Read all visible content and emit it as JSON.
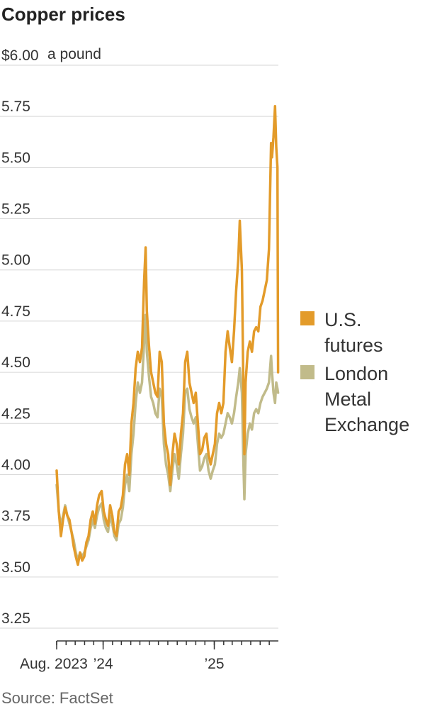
{
  "chart_data": {
    "type": "line",
    "title": "Copper prices",
    "unit_label": "a pound",
    "source": "Source: FactSet",
    "ylim": [
      3.25,
      6.0
    ],
    "y_ticks": [
      {
        "value": 6.0,
        "label": "$6.00"
      },
      {
        "value": 5.75,
        "label": "5.75"
      },
      {
        "value": 5.5,
        "label": "5.50"
      },
      {
        "value": 5.25,
        "label": "5.25"
      },
      {
        "value": 5.0,
        "label": "5.00"
      },
      {
        "value": 4.75,
        "label": "4.75"
      },
      {
        "value": 4.5,
        "label": "4.50"
      },
      {
        "value": 4.25,
        "label": "4.25"
      },
      {
        "value": 4.0,
        "label": "4.00"
      },
      {
        "value": 3.75,
        "label": "3.75"
      },
      {
        "value": 3.5,
        "label": "3.50"
      },
      {
        "value": 3.25,
        "label": "3.25"
      }
    ],
    "xlim": [
      "2023-08-01",
      "2025-07-31"
    ],
    "x_tick_labels": [
      {
        "date": "2023-08-01",
        "label": "Aug. 2023"
      },
      {
        "date": "2024-01-01",
        "label": "’24"
      },
      {
        "date": "2025-01-01",
        "label": "’25"
      }
    ],
    "x_month_ticks": [
      "2023-08-01",
      "2023-09-01",
      "2023-10-01",
      "2023-11-01",
      "2023-12-01",
      "2024-01-01",
      "2024-02-01",
      "2024-03-01",
      "2024-04-01",
      "2024-05-01",
      "2024-06-01",
      "2024-07-01",
      "2024-08-01",
      "2024-09-01",
      "2024-10-01",
      "2024-11-01",
      "2024-12-01",
      "2025-01-01",
      "2025-02-01",
      "2025-03-01",
      "2025-04-01",
      "2025-05-01",
      "2025-06-01",
      "2025-07-01"
    ],
    "legend_position": "right",
    "series": [
      {
        "name": "U.S. futures",
        "color": "#e39b2a",
        "points": [
          [
            "2023-08-01",
            4.02
          ],
          [
            "2023-08-08",
            3.82
          ],
          [
            "2023-08-15",
            3.7
          ],
          [
            "2023-08-22",
            3.78
          ],
          [
            "2023-08-29",
            3.84
          ],
          [
            "2023-09-05",
            3.8
          ],
          [
            "2023-09-12",
            3.78
          ],
          [
            "2023-09-19",
            3.72
          ],
          [
            "2023-09-26",
            3.65
          ],
          [
            "2023-10-03",
            3.6
          ],
          [
            "2023-10-10",
            3.56
          ],
          [
            "2023-10-17",
            3.62
          ],
          [
            "2023-10-24",
            3.58
          ],
          [
            "2023-10-31",
            3.6
          ],
          [
            "2023-11-07",
            3.67
          ],
          [
            "2023-11-14",
            3.7
          ],
          [
            "2023-11-21",
            3.78
          ],
          [
            "2023-11-28",
            3.82
          ],
          [
            "2023-12-05",
            3.76
          ],
          [
            "2023-12-12",
            3.85
          ],
          [
            "2023-12-19",
            3.9
          ],
          [
            "2023-12-27",
            3.92
          ],
          [
            "2024-01-03",
            3.82
          ],
          [
            "2024-01-10",
            3.78
          ],
          [
            "2024-01-17",
            3.75
          ],
          [
            "2024-01-24",
            3.85
          ],
          [
            "2024-01-31",
            3.8
          ],
          [
            "2024-02-07",
            3.72
          ],
          [
            "2024-02-14",
            3.7
          ],
          [
            "2024-02-21",
            3.82
          ],
          [
            "2024-02-28",
            3.84
          ],
          [
            "2024-03-06",
            3.9
          ],
          [
            "2024-03-13",
            4.05
          ],
          [
            "2024-03-20",
            4.1
          ],
          [
            "2024-03-27",
            4.0
          ],
          [
            "2024-04-03",
            4.25
          ],
          [
            "2024-04-10",
            4.35
          ],
          [
            "2024-04-17",
            4.52
          ],
          [
            "2024-04-24",
            4.6
          ],
          [
            "2024-05-01",
            4.55
          ],
          [
            "2024-05-08",
            4.62
          ],
          [
            "2024-05-15",
            4.95
          ],
          [
            "2024-05-20",
            5.11
          ],
          [
            "2024-05-24",
            4.8
          ],
          [
            "2024-05-31",
            4.63
          ],
          [
            "2024-06-07",
            4.5
          ],
          [
            "2024-06-14",
            4.45
          ],
          [
            "2024-06-21",
            4.4
          ],
          [
            "2024-06-28",
            4.38
          ],
          [
            "2024-07-05",
            4.6
          ],
          [
            "2024-07-12",
            4.55
          ],
          [
            "2024-07-19",
            4.25
          ],
          [
            "2024-07-26",
            4.15
          ],
          [
            "2024-08-02",
            4.1
          ],
          [
            "2024-08-09",
            3.95
          ],
          [
            "2024-08-16",
            4.1
          ],
          [
            "2024-08-23",
            4.2
          ],
          [
            "2024-08-30",
            4.15
          ],
          [
            "2024-09-06",
            4.05
          ],
          [
            "2024-09-13",
            4.2
          ],
          [
            "2024-09-20",
            4.3
          ],
          [
            "2024-09-27",
            4.55
          ],
          [
            "2024-10-04",
            4.6
          ],
          [
            "2024-10-11",
            4.45
          ],
          [
            "2024-10-18",
            4.4
          ],
          [
            "2024-10-25",
            4.35
          ],
          [
            "2024-11-01",
            4.4
          ],
          [
            "2024-11-08",
            4.25
          ],
          [
            "2024-11-15",
            4.1
          ],
          [
            "2024-11-22",
            4.12
          ],
          [
            "2024-11-29",
            4.18
          ],
          [
            "2024-12-06",
            4.2
          ],
          [
            "2024-12-13",
            4.1
          ],
          [
            "2024-12-20",
            4.05
          ],
          [
            "2024-12-27",
            4.1
          ],
          [
            "2025-01-03",
            4.15
          ],
          [
            "2025-01-10",
            4.3
          ],
          [
            "2025-01-17",
            4.35
          ],
          [
            "2025-01-24",
            4.3
          ],
          [
            "2025-01-31",
            4.35
          ],
          [
            "2025-02-07",
            4.6
          ],
          [
            "2025-02-14",
            4.7
          ],
          [
            "2025-02-21",
            4.62
          ],
          [
            "2025-02-28",
            4.55
          ],
          [
            "2025-03-07",
            4.7
          ],
          [
            "2025-03-14",
            4.9
          ],
          [
            "2025-03-21",
            5.05
          ],
          [
            "2025-03-26",
            5.24
          ],
          [
            "2025-04-02",
            5.0
          ],
          [
            "2025-04-07",
            4.4
          ],
          [
            "2025-04-10",
            4.1
          ],
          [
            "2025-04-14",
            4.45
          ],
          [
            "2025-04-21",
            4.6
          ],
          [
            "2025-04-28",
            4.65
          ],
          [
            "2025-05-05",
            4.6
          ],
          [
            "2025-05-12",
            4.7
          ],
          [
            "2025-05-19",
            4.72
          ],
          [
            "2025-05-26",
            4.7
          ],
          [
            "2025-06-02",
            4.82
          ],
          [
            "2025-06-09",
            4.85
          ],
          [
            "2025-06-16",
            4.9
          ],
          [
            "2025-06-23",
            4.95
          ],
          [
            "2025-06-30",
            5.1
          ],
          [
            "2025-07-07",
            5.62
          ],
          [
            "2025-07-10",
            5.55
          ],
          [
            "2025-07-15",
            5.65
          ],
          [
            "2025-07-20",
            5.8
          ],
          [
            "2025-07-24",
            5.6
          ],
          [
            "2025-07-28",
            5.5
          ],
          [
            "2025-07-30",
            4.5
          ]
        ]
      },
      {
        "name": "London Metal Exchange",
        "color": "#c1bb8a",
        "points": [
          [
            "2023-08-01",
            3.95
          ],
          [
            "2023-08-08",
            3.82
          ],
          [
            "2023-08-15",
            3.75
          ],
          [
            "2023-08-22",
            3.8
          ],
          [
            "2023-08-29",
            3.85
          ],
          [
            "2023-09-05",
            3.8
          ],
          [
            "2023-09-12",
            3.76
          ],
          [
            "2023-09-19",
            3.72
          ],
          [
            "2023-09-26",
            3.68
          ],
          [
            "2023-10-03",
            3.62
          ],
          [
            "2023-10-10",
            3.58
          ],
          [
            "2023-10-17",
            3.62
          ],
          [
            "2023-10-24",
            3.6
          ],
          [
            "2023-10-31",
            3.62
          ],
          [
            "2023-11-07",
            3.65
          ],
          [
            "2023-11-14",
            3.68
          ],
          [
            "2023-11-21",
            3.74
          ],
          [
            "2023-11-28",
            3.78
          ],
          [
            "2023-12-05",
            3.74
          ],
          [
            "2023-12-12",
            3.8
          ],
          [
            "2023-12-19",
            3.84
          ],
          [
            "2023-12-27",
            3.86
          ],
          [
            "2024-01-03",
            3.78
          ],
          [
            "2024-01-10",
            3.74
          ],
          [
            "2024-01-17",
            3.72
          ],
          [
            "2024-01-24",
            3.8
          ],
          [
            "2024-01-31",
            3.76
          ],
          [
            "2024-02-07",
            3.7
          ],
          [
            "2024-02-14",
            3.68
          ],
          [
            "2024-02-21",
            3.76
          ],
          [
            "2024-02-28",
            3.78
          ],
          [
            "2024-03-06",
            3.84
          ],
          [
            "2024-03-13",
            3.95
          ],
          [
            "2024-03-20",
            4.0
          ],
          [
            "2024-03-27",
            3.92
          ],
          [
            "2024-04-03",
            4.1
          ],
          [
            "2024-04-10",
            4.2
          ],
          [
            "2024-04-17",
            4.35
          ],
          [
            "2024-04-24",
            4.45
          ],
          [
            "2024-05-01",
            4.4
          ],
          [
            "2024-05-08",
            4.45
          ],
          [
            "2024-05-15",
            4.65
          ],
          [
            "2024-05-20",
            4.78
          ],
          [
            "2024-05-24",
            4.6
          ],
          [
            "2024-05-31",
            4.48
          ],
          [
            "2024-06-07",
            4.38
          ],
          [
            "2024-06-14",
            4.35
          ],
          [
            "2024-06-21",
            4.3
          ],
          [
            "2024-06-28",
            4.28
          ],
          [
            "2024-07-05",
            4.42
          ],
          [
            "2024-07-12",
            4.38
          ],
          [
            "2024-07-19",
            4.15
          ],
          [
            "2024-07-26",
            4.05
          ],
          [
            "2024-08-02",
            4.0
          ],
          [
            "2024-08-09",
            3.92
          ],
          [
            "2024-08-16",
            4.02
          ],
          [
            "2024-08-23",
            4.1
          ],
          [
            "2024-08-30",
            4.05
          ],
          [
            "2024-09-06",
            3.98
          ],
          [
            "2024-09-13",
            4.1
          ],
          [
            "2024-09-20",
            4.2
          ],
          [
            "2024-09-27",
            4.4
          ],
          [
            "2024-10-04",
            4.42
          ],
          [
            "2024-10-11",
            4.32
          ],
          [
            "2024-10-18",
            4.28
          ],
          [
            "2024-10-25",
            4.25
          ],
          [
            "2024-11-01",
            4.28
          ],
          [
            "2024-11-08",
            4.15
          ],
          [
            "2024-11-15",
            4.02
          ],
          [
            "2024-11-22",
            4.04
          ],
          [
            "2024-11-29",
            4.08
          ],
          [
            "2024-12-06",
            4.1
          ],
          [
            "2024-12-13",
            4.02
          ],
          [
            "2024-12-20",
            3.98
          ],
          [
            "2024-12-27",
            4.02
          ],
          [
            "2025-01-03",
            4.05
          ],
          [
            "2025-01-10",
            4.15
          ],
          [
            "2025-01-17",
            4.2
          ],
          [
            "2025-01-24",
            4.18
          ],
          [
            "2025-01-31",
            4.2
          ],
          [
            "2025-02-07",
            4.25
          ],
          [
            "2025-02-14",
            4.3
          ],
          [
            "2025-02-21",
            4.28
          ],
          [
            "2025-02-28",
            4.25
          ],
          [
            "2025-03-07",
            4.3
          ],
          [
            "2025-03-14",
            4.38
          ],
          [
            "2025-03-21",
            4.45
          ],
          [
            "2025-03-26",
            4.52
          ],
          [
            "2025-04-02",
            4.4
          ],
          [
            "2025-04-07",
            4.05
          ],
          [
            "2025-04-10",
            3.88
          ],
          [
            "2025-04-14",
            4.1
          ],
          [
            "2025-04-21",
            4.2
          ],
          [
            "2025-04-28",
            4.25
          ],
          [
            "2025-05-05",
            4.22
          ],
          [
            "2025-05-12",
            4.3
          ],
          [
            "2025-05-19",
            4.32
          ],
          [
            "2025-05-26",
            4.3
          ],
          [
            "2025-06-02",
            4.35
          ],
          [
            "2025-06-09",
            4.38
          ],
          [
            "2025-06-16",
            4.4
          ],
          [
            "2025-06-23",
            4.42
          ],
          [
            "2025-06-30",
            4.45
          ],
          [
            "2025-07-07",
            4.58
          ],
          [
            "2025-07-10",
            4.5
          ],
          [
            "2025-07-15",
            4.4
          ],
          [
            "2025-07-20",
            4.35
          ],
          [
            "2025-07-24",
            4.45
          ],
          [
            "2025-07-28",
            4.42
          ],
          [
            "2025-07-30",
            4.4
          ]
        ]
      }
    ]
  }
}
